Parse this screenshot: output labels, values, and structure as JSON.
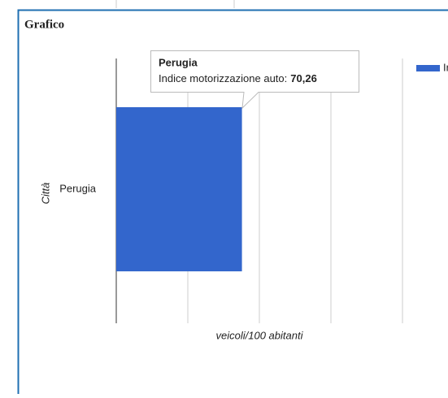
{
  "panel": {
    "title": "Grafico"
  },
  "chart_data": {
    "type": "bar",
    "orientation": "horizontal",
    "categories": [
      "Perugia"
    ],
    "series": [
      {
        "name": "Indice motorizzazione auto",
        "color": "#3366cc",
        "values": [
          70.26
        ],
        "value_labels": [
          "70,26"
        ]
      }
    ],
    "xlim": [
      0,
      240
    ],
    "xticks": [
      0,
      40,
      80,
      120,
      160,
      200
    ],
    "grid": true,
    "x_label": "veicoli/100 abitanti",
    "y_label": "Città",
    "legend": "top-right",
    "tooltip": {
      "label": "Indice motorizzazione auto:"
    }
  }
}
